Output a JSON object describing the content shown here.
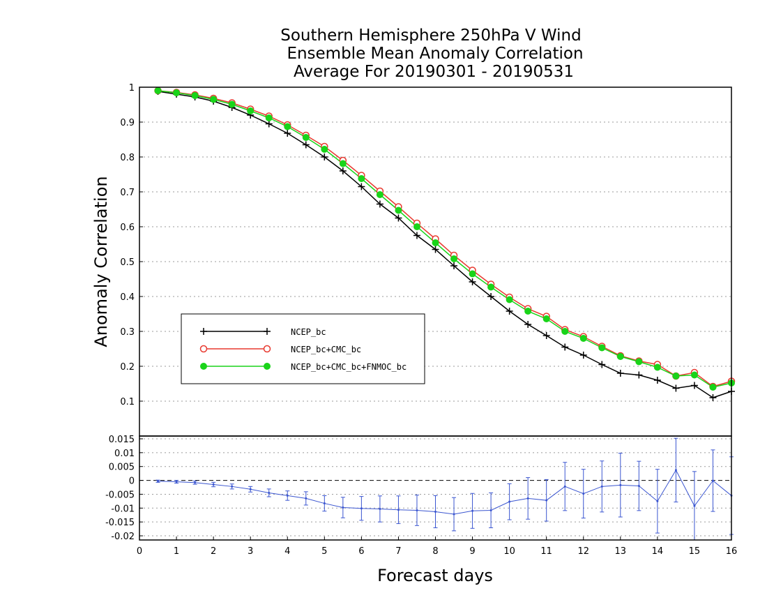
{
  "colors": {
    "ncep": "#000000",
    "cmc": "#e8392f",
    "fnmoc": "#19d419",
    "diff": "#3a55d0",
    "grid": "#9a9a9a"
  },
  "chart_data": [
    {
      "type": "line",
      "title": [
        "Southern Hemisphere 250hPa V Wind",
        "Ensemble Mean Anomaly Correlation",
        "Average For 20190301 - 20190531"
      ],
      "ylabel": "Anomaly Correlation",
      "xlim": [
        0,
        16
      ],
      "ylim": [
        0,
        1
      ],
      "yticks": [
        0.1,
        0.2,
        0.3,
        0.4,
        0.5,
        0.6,
        0.7,
        0.8,
        0.9,
        1
      ],
      "ytick_labels": [
        "0.1",
        "0.2",
        "0.3",
        "0.4",
        "0.5",
        "0.6",
        "0.7",
        "0.8",
        "0.9",
        "1"
      ],
      "grid": true,
      "legend": "lower-left",
      "x": [
        0.5,
        1,
        1.5,
        2,
        2.5,
        3,
        3.5,
        4,
        4.5,
        5,
        5.5,
        6,
        6.5,
        7,
        7.5,
        8,
        8.5,
        9,
        9.5,
        10,
        10.5,
        11,
        11.5,
        12,
        12.5,
        13,
        13.5,
        14,
        14.5,
        15,
        15.5,
        16
      ],
      "series": [
        {
          "name": "NCEP_bc",
          "marker": "plus",
          "values": [
            0.988,
            0.98,
            0.972,
            0.96,
            0.942,
            0.92,
            0.895,
            0.868,
            0.835,
            0.8,
            0.76,
            0.715,
            0.665,
            0.625,
            0.575,
            0.535,
            0.488,
            0.442,
            0.4,
            0.358,
            0.32,
            0.288,
            0.255,
            0.232,
            0.205,
            0.18,
            0.175,
            0.16,
            0.137,
            0.145,
            0.11,
            0.128
          ]
        },
        {
          "name": "NCEP_bc+CMC_bc",
          "marker": "open-circle",
          "values": [
            0.99,
            0.985,
            0.978,
            0.968,
            0.955,
            0.937,
            0.917,
            0.892,
            0.862,
            0.83,
            0.79,
            0.747,
            0.702,
            0.657,
            0.61,
            0.565,
            0.518,
            0.475,
            0.435,
            0.398,
            0.365,
            0.343,
            0.305,
            0.285,
            0.257,
            0.23,
            0.215,
            0.205,
            0.172,
            0.182,
            0.142,
            0.157
          ]
        },
        {
          "name": "NCEP_bc+CMC_bc+FNMOC_bc",
          "marker": "filled-circle",
          "values": [
            0.99,
            0.984,
            0.976,
            0.965,
            0.951,
            0.932,
            0.912,
            0.887,
            0.856,
            0.822,
            0.781,
            0.738,
            0.692,
            0.647,
            0.6,
            0.554,
            0.508,
            0.465,
            0.427,
            0.391,
            0.358,
            0.336,
            0.3,
            0.28,
            0.253,
            0.228,
            0.213,
            0.197,
            0.172,
            0.175,
            0.14,
            0.152
          ]
        }
      ]
    },
    {
      "type": "line",
      "xlabel": "Forecast days",
      "xlim": [
        0,
        16
      ],
      "ylim": [
        -0.0215,
        0.016
      ],
      "xticks": [
        0,
        1,
        2,
        3,
        4,
        5,
        6,
        7,
        8,
        9,
        10,
        11,
        12,
        13,
        14,
        15,
        16
      ],
      "xtick_labels": [
        "0",
        "1",
        "2",
        "3",
        "4",
        "5",
        "6",
        "7",
        "8",
        "9",
        "10",
        "11",
        "12",
        "13",
        "14",
        "15",
        "16"
      ],
      "yticks": [
        -0.02,
        -0.015,
        -0.01,
        -0.005,
        0,
        0.005,
        0.01,
        0.015
      ],
      "ytick_labels": [
        "-0.02",
        "-0.015",
        "-0.01",
        "-0.005",
        "0",
        "0.005",
        "0.01",
        "0.015"
      ],
      "grid": true,
      "reference_line": 0,
      "x": [
        0.5,
        1,
        1.5,
        2,
        2.5,
        3,
        3.5,
        4,
        4.5,
        5,
        5.5,
        6,
        6.5,
        7,
        7.5,
        8,
        8.5,
        9,
        9.5,
        10,
        10.5,
        11,
        11.5,
        12,
        12.5,
        13,
        13.5,
        14,
        14.5,
        15,
        15.5,
        16
      ],
      "values": [
        -0.0003,
        -0.0005,
        -0.0008,
        -0.0015,
        -0.0022,
        -0.0032,
        -0.0045,
        -0.0055,
        -0.0065,
        -0.0083,
        -0.0098,
        -0.0101,
        -0.0103,
        -0.0106,
        -0.0108,
        -0.0113,
        -0.0122,
        -0.011,
        -0.0108,
        -0.0077,
        -0.0065,
        -0.0072,
        -0.0022,
        -0.0048,
        -0.0022,
        -0.0017,
        -0.002,
        -0.0075,
        0.0037,
        -0.0092,
        -0.0001,
        -0.0055
      ],
      "errors": [
        0.0004,
        0.0005,
        0.0006,
        0.0008,
        0.0009,
        0.001,
        0.0014,
        0.0017,
        0.0024,
        0.0028,
        0.0037,
        0.0043,
        0.0047,
        0.005,
        0.0055,
        0.0058,
        0.006,
        0.0063,
        0.0063,
        0.0065,
        0.0075,
        0.0075,
        0.0087,
        0.0088,
        0.0092,
        0.0115,
        0.0089,
        0.0115,
        0.0115,
        0.0124,
        0.0111,
        0.014
      ]
    }
  ]
}
